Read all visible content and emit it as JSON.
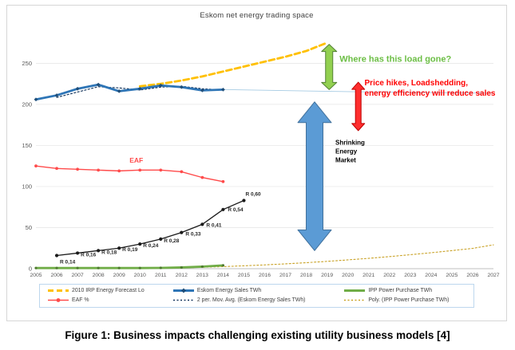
{
  "figure": {
    "caption": "Figure 1: Business impacts challenging existing utility business models [4]"
  },
  "chart_data": {
    "type": "line",
    "title": "Eskom net energy trading space",
    "x_range": [
      2005,
      2027
    ],
    "ylim": [
      0,
      295
    ],
    "x_ticks": [
      2005,
      2006,
      2007,
      2008,
      2009,
      2010,
      2011,
      2012,
      2013,
      2014,
      2015,
      2016,
      2017,
      2018,
      2019,
      2020,
      2021,
      2022,
      2023,
      2024,
      2025,
      2026,
      2027
    ],
    "y_ticks": [
      0,
      50,
      100,
      150,
      200,
      250
    ],
    "grid": true,
    "legend_position": "bottom",
    "series": [
      {
        "id": "sales-thin-extension",
        "name": "",
        "color": "#a6cbe3",
        "style": "solid",
        "width": 0.9,
        "in_legend": false,
        "x": [
          2014,
          2020,
          2027
        ],
        "y": [
          218,
          215.5,
          213.5
        ]
      },
      {
        "id": "ipp-poly",
        "name": "Poly. (IPP Power Purchase TWh)",
        "color": "#c9a227",
        "style": "dotted",
        "width": 1.1,
        "in_legend": true,
        "x": [
          2012,
          2013,
          2014,
          2015,
          2016,
          2017,
          2018,
          2019,
          2020,
          2021,
          2022,
          2023,
          2024,
          2025,
          2026,
          2027
        ],
        "y": [
          1,
          1.7,
          2.5,
          3.5,
          4.6,
          5.9,
          7.3,
          8.9,
          10.7,
          12.6,
          14.7,
          17,
          19.4,
          22,
          24.7,
          29
        ]
      },
      {
        "id": "irp-forecast",
        "name": "2010 IRP Energy Forecast Lo",
        "color": "#ffc000",
        "style": "dashed",
        "width": 2.8,
        "in_legend": true,
        "x": [
          2010,
          2011,
          2012,
          2013,
          2014,
          2015,
          2016,
          2017,
          2018,
          2019
        ],
        "y": [
          222,
          225,
          229,
          234,
          240,
          246,
          252,
          258,
          265,
          275
        ]
      },
      {
        "id": "sales-mov-avg",
        "name": "2 per. Mov. Avg. (Eskom Energy Sales TWh)",
        "color": "#17375e",
        "style": "dotted",
        "width": 1.2,
        "in_legend": true,
        "x": [
          2006,
          2007,
          2008,
          2009,
          2010,
          2011,
          2012,
          2013,
          2014
        ],
        "y": [
          208.5,
          215,
          221.5,
          220,
          217.5,
          221,
          222,
          219,
          217.5
        ]
      },
      {
        "id": "eskom-sales",
        "name": "Eskom Energy Sales TWh",
        "color": "#2e75b6",
        "style": "solid",
        "width": 2.8,
        "marker": "diamond",
        "marker_color": "#1f4e79",
        "marker_r": 2.4,
        "in_legend": true,
        "x": [
          2005,
          2006,
          2007,
          2008,
          2009,
          2010,
          2011,
          2012,
          2013,
          2014
        ],
        "y": [
          206,
          211,
          219,
          224,
          216,
          219,
          223,
          221,
          217,
          218
        ]
      },
      {
        "id": "eaf",
        "name": "EAF %",
        "color": "#ff4b4b",
        "style": "solid",
        "width": 1.4,
        "marker": "circle",
        "marker_color": "#ff4b4b",
        "marker_r": 1.9,
        "in_legend": true,
        "x": [
          2005,
          2006,
          2007,
          2008,
          2009,
          2010,
          2011,
          2012,
          2013,
          2014
        ],
        "y": [
          125,
          122,
          121,
          120,
          119,
          120,
          120,
          118,
          111,
          106
        ]
      },
      {
        "id": "ipp",
        "name": "IPP Power Purchase TWh",
        "color": "#70ad47",
        "style": "solid",
        "width": 2.8,
        "marker": "circle",
        "marker_color": "#4e7a2f",
        "marker_r": 1.6,
        "in_legend": true,
        "x": [
          2005,
          2006,
          2007,
          2008,
          2009,
          2010,
          2011,
          2012,
          2013,
          2014
        ],
        "y": [
          0.8,
          0.8,
          0.8,
          0.8,
          0.8,
          0.8,
          1,
          1.5,
          2.5,
          4
        ]
      },
      {
        "id": "price-line",
        "name": "",
        "color": "#1a1a1a",
        "style": "solid",
        "width": 1.3,
        "marker": "circle",
        "marker_color": "#1a1a1a",
        "marker_r": 2.1,
        "in_legend": false,
        "x": [
          2006,
          2007,
          2008,
          2009,
          2010,
          2011,
          2012,
          2013,
          2014,
          2015
        ],
        "y": [
          16,
          19,
          22,
          25,
          30,
          36,
          44,
          54,
          72,
          83
        ],
        "labels": [
          "R 0,14",
          "R 0,16",
          "R 0,18",
          "R 0,19",
          "R 0,24",
          "R 0,28",
          "R 0,33",
          "R 0,41",
          "R 0,54",
          "R 0,60"
        ],
        "label_dx": [
          4,
          4,
          4,
          4,
          4,
          4,
          5,
          5,
          6,
          2
        ],
        "label_dy": [
          10,
          4,
          4,
          4,
          4,
          4,
          4,
          3,
          2,
          -6
        ]
      }
    ],
    "legend": [
      {
        "id": "irp-forecast",
        "label": "2010 IRP Energy Forecast Lo",
        "color": "#ffc000",
        "style": "dashed",
        "thick": 3,
        "marker": ""
      },
      {
        "id": "eskom-sales",
        "label": "Eskom Energy Sales TWh",
        "color": "#2e75b6",
        "style": "solid",
        "thick": 3,
        "marker": "diamond"
      },
      {
        "id": "ipp",
        "label": "IPP Power Purchase TWh",
        "color": "#70ad47",
        "style": "solid",
        "thick": 3,
        "marker": ""
      },
      {
        "id": "eaf",
        "label": "EAF %",
        "color": "#ff4b4b",
        "style": "solid",
        "thick": 1.5,
        "marker": "circle"
      },
      {
        "id": "mov-avg",
        "label": "2 per. Mov. Avg. (Eskom Energy Sales TWh)",
        "color": "#17375e",
        "style": "dotted",
        "thick": 1.5,
        "marker": ""
      },
      {
        "id": "poly",
        "label": "Poly. (IPP Power Purchase TWh)",
        "color": "#c9a227",
        "style": "dotted",
        "thick": 1.5,
        "marker": ""
      }
    ],
    "annotations": {
      "texts": [
        {
          "id": "load-gone-label",
          "lines": [
            "Where has this load gone?"
          ],
          "x": 2019.6,
          "y": 252,
          "color": "#6cbe45",
          "size": 11,
          "weight": 600,
          "line_gap": 13
        },
        {
          "id": "price-hikes-label",
          "lines": [
            "Price hikes, Loadshedding,",
            "energy efficiency will reduce sales"
          ],
          "x": 2020.8,
          "y": 223,
          "color": "#ff0000",
          "size": 10,
          "weight": 600,
          "line_gap": 13
        },
        {
          "id": "shrinking-market-label",
          "lines": [
            "Shrinking",
            "Energy",
            "Market"
          ],
          "x": 2019.4,
          "y": 151,
          "color": "#000000",
          "size": 8,
          "weight": 700,
          "line_gap": 11
        },
        {
          "id": "eaf-line-label",
          "lines": [
            "EAF"
          ],
          "x": 2009.5,
          "y": 129,
          "color": "#ff4b4b",
          "size": 8.5,
          "weight": 700,
          "line_gap": 11
        }
      ],
      "arrows": [
        {
          "id": "shrinking-market-arrow",
          "x": 2018.4,
          "y_top": 203,
          "y_bottom": 22,
          "shaft_width": 21,
          "head_width": 42,
          "head_length": 26,
          "fill": "#5b9bd5",
          "stroke": "#41719c"
        },
        {
          "id": "load-gap-arrow",
          "x": 2019.1,
          "y_top": 273,
          "y_bottom": 218,
          "shaft_width": 9,
          "head_width": 19,
          "head_length": 9,
          "fill": "#92d050",
          "stroke": "#538135"
        },
        {
          "id": "sales-reduction-arrow",
          "x": 2020.5,
          "y_top": 227,
          "y_bottom": 168,
          "shaft_width": 7,
          "head_width": 16,
          "head_length": 9,
          "fill": "#ff2e2e",
          "stroke": "#c00000"
        }
      ]
    }
  }
}
